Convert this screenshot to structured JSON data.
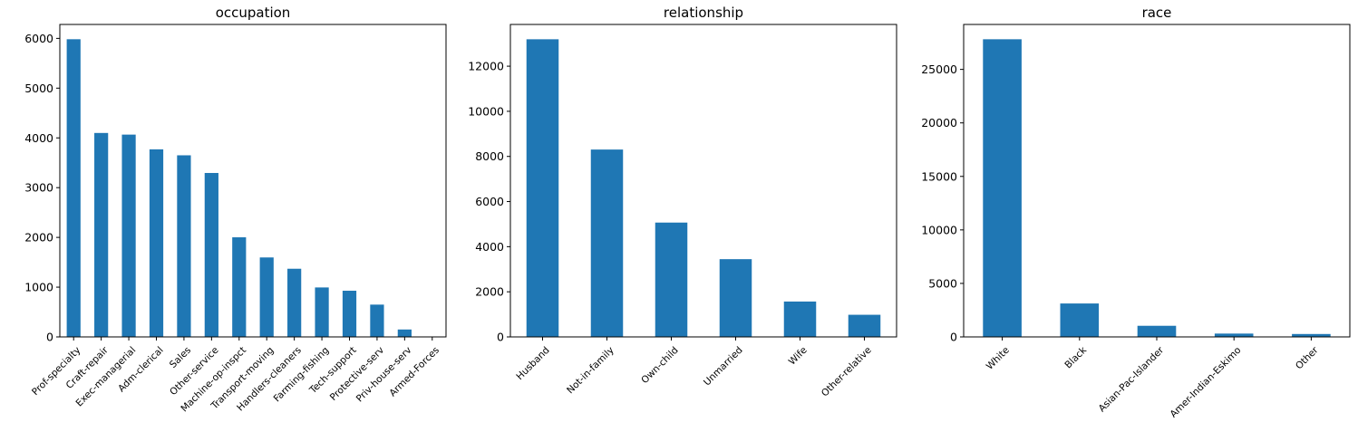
{
  "chart_data": [
    {
      "type": "bar",
      "title": "occupation",
      "xlabel": "",
      "ylabel": "",
      "categories": [
        "Prof-specialty",
        "Craft-repair",
        "Exec-managerial",
        "Adm-clerical",
        "Sales",
        "Other-service",
        "Machine-op-inspct",
        "Transport-moving",
        "Handlers-cleaners",
        "Farming-fishing",
        "Tech-support",
        "Protective-serv",
        "Priv-house-serv",
        "Armed-Forces"
      ],
      "values": [
        5983,
        4099,
        4066,
        3770,
        3650,
        3295,
        2002,
        1597,
        1370,
        994,
        928,
        649,
        149,
        9
      ],
      "ylim": [
        0,
        6280
      ],
      "yticks": [
        0,
        1000,
        2000,
        3000,
        4000,
        5000,
        6000
      ],
      "color": "#1f77b4",
      "grid": false,
      "legend": "none"
    },
    {
      "type": "bar",
      "title": "relationship",
      "xlabel": "",
      "ylabel": "",
      "categories": [
        "Husband",
        "Not-in-family",
        "Own-child",
        "Unmarried",
        "Wife",
        "Other-relative"
      ],
      "values": [
        13193,
        8305,
        5068,
        3446,
        1568,
        981
      ],
      "ylim": [
        0,
        13850
      ],
      "yticks": [
        0,
        2000,
        4000,
        6000,
        8000,
        10000,
        12000
      ],
      "color": "#1f77b4",
      "grid": false,
      "legend": "none"
    },
    {
      "type": "bar",
      "title": "race",
      "xlabel": "",
      "ylabel": "",
      "categories": [
        "White",
        "Black",
        "Asian-Pac-Islander",
        "Amer-Indian-Eskimo",
        "Other"
      ],
      "values": [
        27816,
        3124,
        1039,
        311,
        271
      ],
      "ylim": [
        0,
        29200
      ],
      "yticks": [
        0,
        5000,
        10000,
        15000,
        20000,
        25000
      ],
      "color": "#1f77b4",
      "grid": false,
      "legend": "none"
    }
  ]
}
